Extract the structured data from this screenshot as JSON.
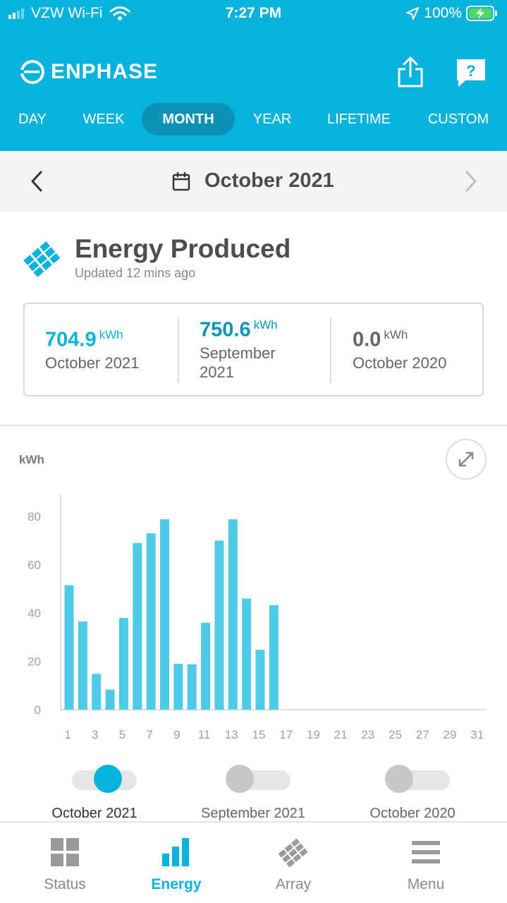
{
  "status_bar": {
    "carrier": "VZW Wi-Fi",
    "time": "7:27 PM",
    "battery": "100%"
  },
  "header": {
    "brand": "ENPHASE",
    "share_icon": "share-icon",
    "help_icon": "help-icon",
    "tabs": [
      {
        "label": "DAY",
        "active": false
      },
      {
        "label": "WEEK",
        "active": false
      },
      {
        "label": "MONTH",
        "active": true
      },
      {
        "label": "YEAR",
        "active": false
      },
      {
        "label": "LIFETIME",
        "active": false
      },
      {
        "label": "CUSTOM",
        "active": false
      }
    ]
  },
  "date_nav": {
    "label": "October 2021",
    "prev_icon": "chevron-left-icon",
    "next_icon": "chevron-right-icon",
    "calendar_icon": "calendar-icon"
  },
  "energy": {
    "title": "Energy Produced",
    "updated": "Updated 12 mins ago",
    "summary": [
      {
        "value": "704.9",
        "unit": "kWh",
        "label": "October 2021",
        "color": "#07b2dd"
      },
      {
        "value": "750.6",
        "unit": "kWh",
        "label": "September 2021",
        "color": "#0a93b7"
      },
      {
        "value": "0.0",
        "unit": "kWh",
        "label": "October 2020",
        "color": "#666666"
      }
    ]
  },
  "chart_data": {
    "type": "bar",
    "ylabel": "kWh",
    "ylim": [
      0,
      90
    ],
    "yticks": [
      0,
      20,
      40,
      60,
      80
    ],
    "categories": [
      1,
      2,
      3,
      4,
      5,
      6,
      7,
      8,
      9,
      10,
      11,
      12,
      13,
      14,
      15,
      16,
      17,
      18,
      19,
      20,
      21,
      22,
      23,
      24,
      25,
      26,
      27,
      28,
      29,
      30,
      31
    ],
    "xtick_labels": [
      "1",
      "3",
      "5",
      "7",
      "9",
      "11",
      "13",
      "15",
      "17",
      "19",
      "21",
      "23",
      "25",
      "27",
      "29",
      "31"
    ],
    "values": [
      51.5,
      36.5,
      14.8,
      8.3,
      38.0,
      69.0,
      73.0,
      78.8,
      19.0,
      18.8,
      36.0,
      70.0,
      78.8,
      46.0,
      24.8,
      43.3,
      0,
      0,
      0,
      0,
      0,
      0,
      0,
      0,
      0,
      0,
      0,
      0,
      0,
      0,
      0
    ],
    "bar_color": "#4fcbe8",
    "grid": false
  },
  "toggles": [
    {
      "label": "October 2021",
      "on": true,
      "color": "#07b2dd"
    },
    {
      "label": "September 2021",
      "on": false,
      "color": "#c8c8c8"
    },
    {
      "label": "October 2020",
      "on": false,
      "color": "#c8c8c8"
    }
  ],
  "bottom_nav": [
    {
      "label": "Status",
      "icon": "grid-icon",
      "active": false
    },
    {
      "label": "Energy",
      "icon": "bar-chart-icon",
      "active": true
    },
    {
      "label": "Array",
      "icon": "solar-array-icon",
      "active": false
    },
    {
      "label": "Menu",
      "icon": "menu-icon",
      "active": false
    }
  ],
  "colors": {
    "brand": "#07b2dd",
    "brand_dark": "#0a93b7",
    "text": "#4d4d4d",
    "inactive": "#8a8a8a"
  }
}
